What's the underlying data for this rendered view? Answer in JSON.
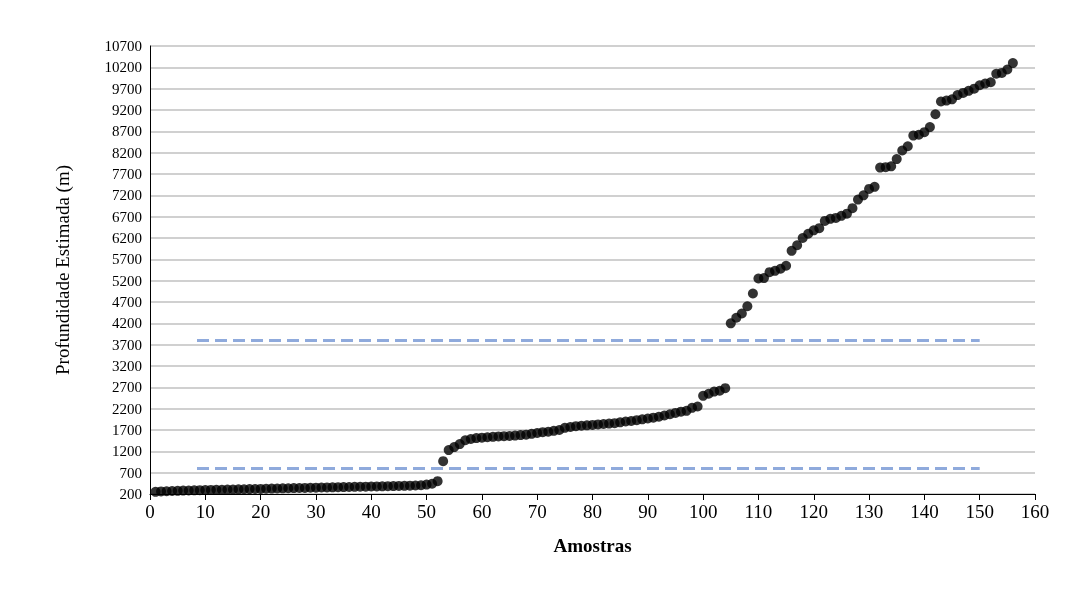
{
  "chart_data": {
    "type": "scatter",
    "xlabel": "Amostras",
    "ylabel": "Profundidade Estimada (m)",
    "xlim": [
      0,
      160
    ],
    "xticks": [
      0,
      10,
      20,
      30,
      40,
      50,
      60,
      70,
      80,
      90,
      100,
      110,
      120,
      130,
      140,
      150,
      160
    ],
    "ylim": [
      200,
      10700
    ],
    "yticks": [
      200,
      700,
      1200,
      1700,
      2200,
      2700,
      3200,
      3700,
      4200,
      4700,
      5200,
      5700,
      6200,
      6700,
      7200,
      7700,
      8200,
      8700,
      9200,
      9700,
      10200,
      10700
    ],
    "grid": "y",
    "series": [
      {
        "color": "#000000",
        "marker": "circle",
        "x": [
          1,
          2,
          3,
          4,
          5,
          6,
          7,
          8,
          9,
          10,
          11,
          12,
          13,
          14,
          15,
          16,
          17,
          18,
          19,
          20,
          21,
          22,
          23,
          24,
          25,
          26,
          27,
          28,
          29,
          30,
          31,
          32,
          33,
          34,
          35,
          36,
          37,
          38,
          39,
          40,
          41,
          42,
          43,
          44,
          45,
          46,
          47,
          48,
          49,
          50,
          51,
          52,
          53,
          54,
          55,
          56,
          57,
          58,
          59,
          60,
          61,
          62,
          63,
          64,
          65,
          66,
          67,
          68,
          69,
          70,
          71,
          72,
          73,
          74,
          75,
          76,
          77,
          78,
          79,
          80,
          81,
          82,
          83,
          84,
          85,
          86,
          87,
          88,
          89,
          90,
          91,
          92,
          93,
          94,
          95,
          96,
          97,
          98,
          99,
          100,
          101,
          102,
          103,
          104,
          105,
          106,
          107,
          108,
          109,
          110,
          111,
          112,
          113,
          114,
          115,
          116,
          117,
          118,
          119,
          120,
          121,
          122,
          123,
          124,
          125,
          126,
          127,
          128,
          129,
          130,
          131,
          132,
          133,
          134,
          135,
          136,
          137,
          138,
          139,
          140,
          141,
          142,
          143,
          144,
          145,
          146,
          147,
          148,
          149,
          150,
          151,
          152,
          153,
          154,
          155,
          156
        ],
        "values": [
          250,
          260,
          265,
          270,
          275,
          280,
          283,
          286,
          289,
          292,
          295,
          298,
          300,
          303,
          306,
          309,
          312,
          315,
          318,
          320,
          323,
          326,
          329,
          332,
          335,
          338,
          340,
          343,
          346,
          349,
          352,
          355,
          357,
          360,
          362,
          365,
          367,
          370,
          372,
          375,
          378,
          380,
          383,
          386,
          389,
          392,
          395,
          400,
          405,
          420,
          440,
          500,
          970,
          1230,
          1300,
          1370,
          1460,
          1490,
          1510,
          1520,
          1530,
          1540,
          1550,
          1555,
          1560,
          1570,
          1580,
          1590,
          1610,
          1630,
          1650,
          1660,
          1680,
          1700,
          1750,
          1770,
          1790,
          1800,
          1810,
          1820,
          1830,
          1840,
          1850,
          1860,
          1880,
          1900,
          1910,
          1930,
          1950,
          1970,
          1990,
          2010,
          2040,
          2070,
          2100,
          2130,
          2150,
          2220,
          2250,
          2500,
          2550,
          2600,
          2620,
          2680,
          4200,
          4330,
          4430,
          4600,
          4900,
          5250,
          5260,
          5400,
          5430,
          5480,
          5550,
          5900,
          6030,
          6200,
          6300,
          6380,
          6430,
          6600,
          6650,
          6670,
          6720,
          6770,
          6900,
          7100,
          7200,
          7350,
          7400,
          7850,
          7860,
          7880,
          8050,
          8250,
          8350,
          8600,
          8620,
          8680,
          8800,
          9100,
          9400,
          9420,
          9450,
          9550,
          9600,
          9650,
          9700,
          9780,
          9820,
          9850,
          10050,
          10070,
          10150,
          10300
        ]
      },
      {
        "type": "line",
        "color": "#8faadc",
        "line_style": "dashed",
        "marker": "none",
        "x": [
          8.5,
          150
        ],
        "values": [
          3800,
          3800
        ]
      },
      {
        "type": "line",
        "color": "#8faadc",
        "line_style": "dashed",
        "marker": "none",
        "x": [
          8.5,
          150
        ],
        "values": [
          800,
          800
        ]
      }
    ]
  }
}
